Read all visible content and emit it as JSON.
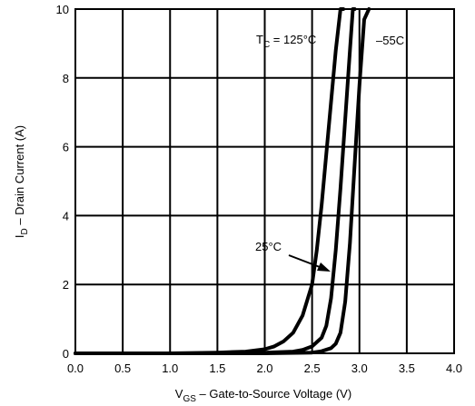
{
  "chart_data": {
    "type": "line",
    "xlabel": "V",
    "xlabel_sub": "GS",
    "xlabel_rest": " – Gate-to-Source Voltage (V)",
    "ylabel": "I",
    "ylabel_sub": "D",
    "ylabel_rest": " – Drain Current (A)",
    "xlim": [
      0,
      4
    ],
    "ylim": [
      0,
      10
    ],
    "x_ticks": [
      "0.0",
      "0.5",
      "1.0",
      "1.5",
      "2.0",
      "2.5",
      "3.0",
      "3.5",
      "4.0"
    ],
    "y_ticks": [
      "0",
      "2",
      "4",
      "6",
      "8",
      "10"
    ],
    "grid": true,
    "annotations": {
      "t125_main": "T",
      "t125_sub": "C",
      "t125_rest": " = 125°C",
      "t25": "25°C",
      "tm55": "–55C"
    },
    "series": [
      {
        "name": "125°C",
        "x": [
          0.0,
          1.0,
          1.5,
          1.8,
          2.0,
          2.1,
          2.2,
          2.3,
          2.4,
          2.5,
          2.55,
          2.6,
          2.65,
          2.7,
          2.75,
          2.8,
          2.83
        ],
        "y": [
          0.0,
          0.0,
          0.02,
          0.05,
          0.12,
          0.2,
          0.35,
          0.6,
          1.1,
          2.0,
          3.0,
          4.3,
          5.8,
          7.3,
          8.8,
          10.0,
          10.0
        ]
      },
      {
        "name": "25°C",
        "x": [
          0.0,
          1.5,
          2.0,
          2.3,
          2.4,
          2.5,
          2.6,
          2.65,
          2.7,
          2.75,
          2.8,
          2.85,
          2.9,
          2.93,
          2.95
        ],
        "y": [
          0.0,
          0.0,
          0.02,
          0.05,
          0.1,
          0.2,
          0.45,
          0.8,
          1.6,
          3.0,
          4.8,
          6.8,
          8.8,
          10.0,
          10.0
        ]
      },
      {
        "name": "-55°C",
        "x": [
          0.0,
          1.5,
          2.0,
          2.5,
          2.6,
          2.7,
          2.75,
          2.8,
          2.85,
          2.9,
          2.95,
          3.0,
          3.05,
          3.1
        ],
        "y": [
          0.0,
          0.0,
          0.0,
          0.02,
          0.06,
          0.15,
          0.28,
          0.6,
          1.5,
          3.2,
          5.5,
          7.8,
          9.7,
          10.0
        ]
      }
    ]
  }
}
